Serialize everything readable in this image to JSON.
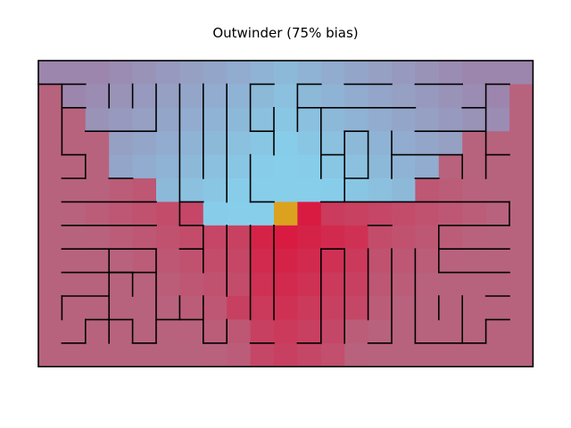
{
  "title": "Outwinder (75% bias)",
  "maze": {
    "cols": 21,
    "rows": 13,
    "border_color": "#000000",
    "wall_color": "#000000",
    "start_cell": {
      "col": 10,
      "row": 6,
      "color": "#dba21f"
    },
    "palette": {
      "sky": "#87ceeb",
      "violet": "#a07ca5",
      "rose": "#b8637e",
      "crimson": "#dc143c"
    },
    "regions": [
      {
        "name": "sky-region",
        "color_key": "sky"
      },
      {
        "name": "rose-region",
        "color_key": "rose"
      },
      {
        "name": "crimson-region",
        "color_key": "crimson"
      }
    ]
  }
}
